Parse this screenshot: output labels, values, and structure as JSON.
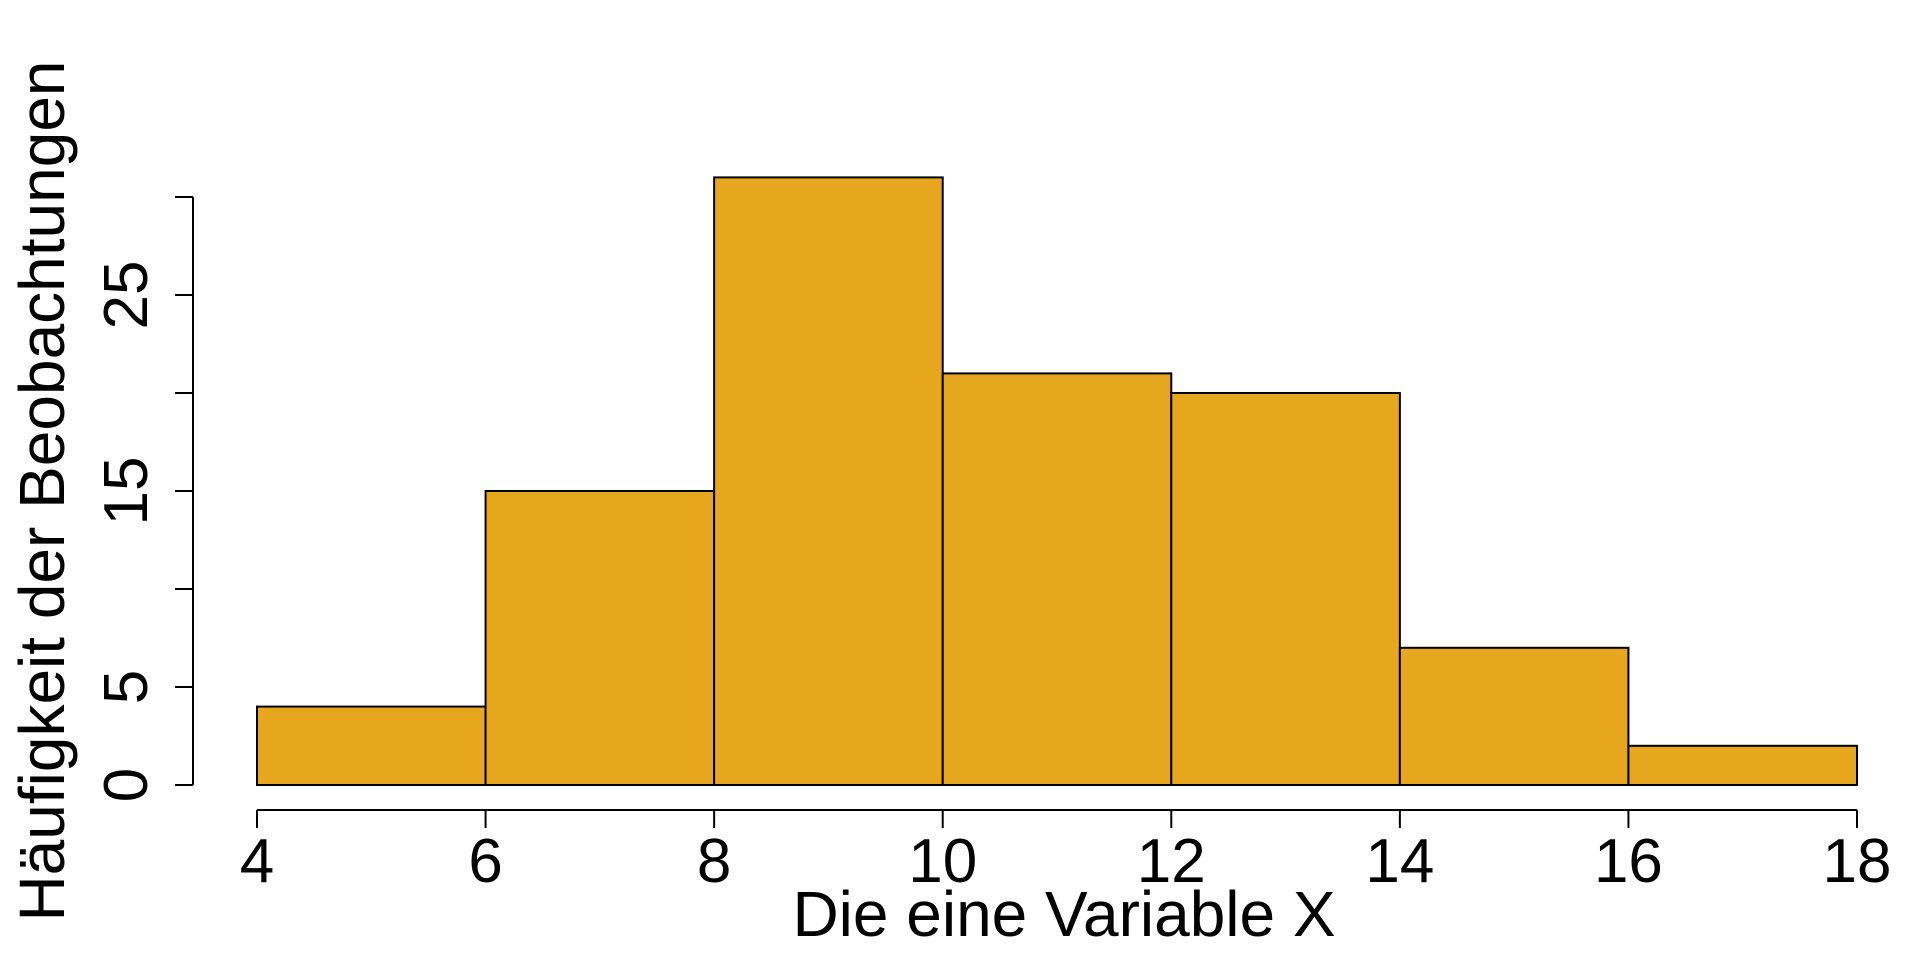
{
  "chart_data": {
    "type": "bar",
    "subtype": "histogram",
    "title": "",
    "xlabel": "Die eine Variable X",
    "ylabel": "Häufigkeit der Beobachtungen",
    "bins": [
      {
        "x0": 4,
        "x1": 6,
        "count": 4
      },
      {
        "x0": 6,
        "x1": 8,
        "count": 15
      },
      {
        "x0": 8,
        "x1": 10,
        "count": 31
      },
      {
        "x0": 10,
        "x1": 12,
        "count": 21
      },
      {
        "x0": 12,
        "x1": 14,
        "count": 20
      },
      {
        "x0": 14,
        "x1": 16,
        "count": 7
      },
      {
        "x0": 16,
        "x1": 18,
        "count": 2
      }
    ],
    "xlim": [
      4,
      18
    ],
    "ylim": [
      0,
      30
    ],
    "x_ticks": [
      4,
      6,
      8,
      10,
      12,
      14,
      16,
      18
    ],
    "y_ticks": [
      0,
      5,
      10,
      15,
      20,
      25,
      30
    ],
    "y_tick_labels": [
      "0",
      "5",
      "",
      "15",
      "",
      "25",
      ""
    ],
    "grid": false,
    "bar_color": "#E6A71F",
    "edge_color": "#000000"
  }
}
